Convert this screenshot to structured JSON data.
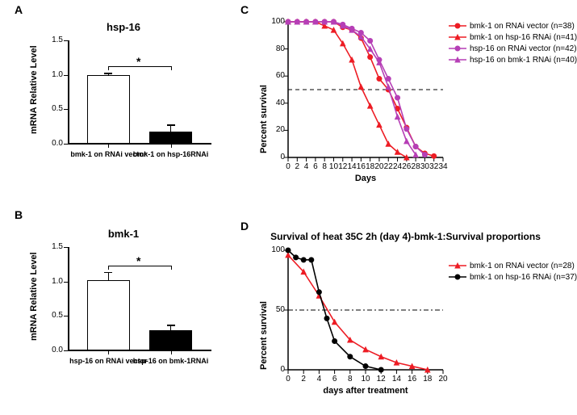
{
  "panels": {
    "A": {
      "letter": "A"
    },
    "B": {
      "letter": "B"
    },
    "C": {
      "letter": "C"
    },
    "D": {
      "letter": "D"
    }
  },
  "barA": {
    "title": "hsp-16",
    "ylabel": "mRNA Relative Level",
    "ymax": 1.5,
    "yticks": [
      0.0,
      0.5,
      1.0,
      1.5
    ],
    "ytick_labels": [
      "0.0",
      "0.5",
      "1.0",
      "1.5"
    ],
    "sig": "*",
    "cats": [
      {
        "label": "bmk-1 on RNAi vector",
        "value": 1.0,
        "err": 0.03,
        "fill": "#ffffff"
      },
      {
        "label": "bmk-1 on hsp-16RNAi",
        "value": 0.17,
        "err": 0.11,
        "fill": "#000000"
      }
    ]
  },
  "barB": {
    "title": "bmk-1",
    "ylabel": "mRNA Relative Level",
    "ymax": 1.5,
    "yticks": [
      0.0,
      0.5,
      1.0,
      1.5
    ],
    "ytick_labels": [
      "0.0",
      "0.5",
      "1.0",
      "1.5"
    ],
    "sig": "*",
    "cats": [
      {
        "label": "hsp-16 on RNAi vector",
        "value": 1.02,
        "err": 0.12,
        "fill": "#ffffff"
      },
      {
        "label": "hsp-16 on bmk-1RNAi",
        "value": 0.29,
        "err": 0.08,
        "fill": "#000000"
      }
    ]
  },
  "lineC": {
    "ylabel": "Percent survival",
    "xlabel": "Days",
    "xlim": [
      0,
      34
    ],
    "ylim": [
      0,
      100
    ],
    "xtick_step": 2,
    "ytick_step": 20,
    "ref_y": 50,
    "ref_dash": "5,4",
    "series": [
      {
        "name": "bmk-1 on RNAi vector (n=38)",
        "color": "#ed1c24",
        "marker": "circle",
        "points": [
          [
            0,
            100
          ],
          [
            2,
            100
          ],
          [
            4,
            100
          ],
          [
            6,
            100
          ],
          [
            8,
            100
          ],
          [
            10,
            100
          ],
          [
            12,
            96
          ],
          [
            14,
            94
          ],
          [
            16,
            88
          ],
          [
            18,
            74
          ],
          [
            20,
            58
          ],
          [
            22,
            50
          ],
          [
            24,
            36
          ],
          [
            26,
            22
          ],
          [
            28,
            8
          ],
          [
            30,
            3
          ],
          [
            32,
            1
          ]
        ]
      },
      {
        "name": "bmk-1 on hsp-16 RNAi (n=41)",
        "color": "#ed1c24",
        "marker": "triangle",
        "points": [
          [
            0,
            100
          ],
          [
            2,
            100
          ],
          [
            4,
            100
          ],
          [
            6,
            100
          ],
          [
            8,
            97
          ],
          [
            10,
            94
          ],
          [
            12,
            84
          ],
          [
            14,
            72
          ],
          [
            16,
            52
          ],
          [
            18,
            38
          ],
          [
            20,
            24
          ],
          [
            22,
            10
          ],
          [
            24,
            4
          ],
          [
            26,
            0
          ]
        ]
      },
      {
        "name": "hsp-16 on RNAi vector (n=42)",
        "color": "#b63fb6",
        "marker": "circle",
        "points": [
          [
            0,
            100
          ],
          [
            2,
            100
          ],
          [
            4,
            100
          ],
          [
            6,
            100
          ],
          [
            8,
            100
          ],
          [
            10,
            100
          ],
          [
            12,
            98
          ],
          [
            14,
            95
          ],
          [
            16,
            92
          ],
          [
            18,
            86
          ],
          [
            20,
            72
          ],
          [
            22,
            58
          ],
          [
            24,
            44
          ],
          [
            26,
            21
          ],
          [
            28,
            8
          ],
          [
            30,
            2
          ]
        ]
      },
      {
        "name": "hsp-16 on bmk-1 RNAi (n=40)",
        "color": "#b63fb6",
        "marker": "triangle",
        "points": [
          [
            0,
            100
          ],
          [
            2,
            100
          ],
          [
            4,
            100
          ],
          [
            6,
            100
          ],
          [
            8,
            100
          ],
          [
            10,
            100
          ],
          [
            12,
            97
          ],
          [
            14,
            94
          ],
          [
            16,
            89
          ],
          [
            18,
            80
          ],
          [
            20,
            70
          ],
          [
            22,
            52
          ],
          [
            24,
            30
          ],
          [
            26,
            12
          ],
          [
            28,
            2
          ]
        ]
      }
    ]
  },
  "lineD": {
    "title": "Survival of heat 35C 2h (day 4)-bmk-1:Survival proportions",
    "ylabel": "Percent survival",
    "xlabel": "days after treatment",
    "xlim": [
      0,
      20
    ],
    "ylim": [
      0,
      100
    ],
    "xtick_step": 2,
    "ytick_step": 50,
    "ref_y": 50,
    "ref_dash": "6,3,2,3",
    "series": [
      {
        "name": "bmk-1 on RNAi vector (n=28)",
        "color": "#ed1c24",
        "marker": "triangle",
        "points": [
          [
            0,
            96
          ],
          [
            2,
            82
          ],
          [
            4,
            62
          ],
          [
            6,
            40
          ],
          [
            8,
            25
          ],
          [
            10,
            17
          ],
          [
            12,
            11
          ],
          [
            14,
            6
          ],
          [
            16,
            3
          ],
          [
            18,
            0
          ]
        ]
      },
      {
        "name": "bmk-1 on hsp-16 RNAi (n=37)",
        "color": "#000000",
        "marker": "circle",
        "points": [
          [
            0,
            100
          ],
          [
            1,
            94
          ],
          [
            2,
            92
          ],
          [
            3,
            92
          ],
          [
            4,
            65
          ],
          [
            5,
            43
          ],
          [
            6,
            24
          ],
          [
            8,
            11
          ],
          [
            10,
            3
          ],
          [
            12,
            0
          ]
        ]
      }
    ]
  }
}
